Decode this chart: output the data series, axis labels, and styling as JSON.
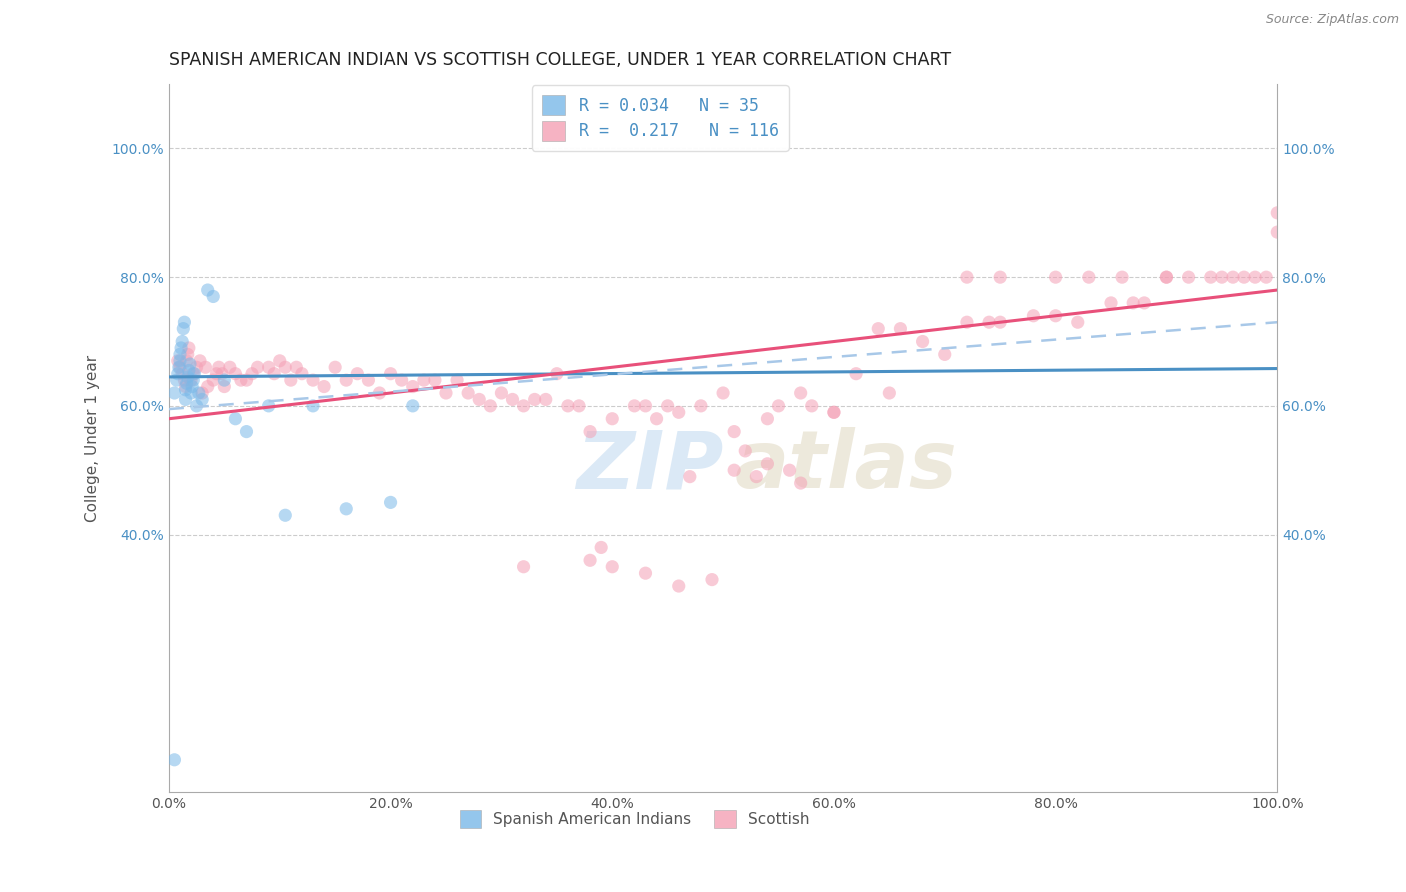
{
  "title": "SPANISH AMERICAN INDIAN VS SCOTTISH COLLEGE, UNDER 1 YEAR CORRELATION CHART",
  "source": "Source: ZipAtlas.com",
  "ylabel": "College, Under 1 year",
  "xlim": [
    0.0,
    1.0
  ],
  "ylim": [
    0.0,
    1.1
  ],
  "xtick_labels": [
    "0.0%",
    "20.0%",
    "40.0%",
    "60.0%",
    "80.0%",
    "100.0%"
  ],
  "xtick_values": [
    0.0,
    0.2,
    0.4,
    0.6,
    0.8,
    1.0
  ],
  "ytick_labels": [
    "40.0%",
    "60.0%",
    "80.0%",
    "100.0%"
  ],
  "ytick_values": [
    0.4,
    0.6,
    0.8,
    1.0
  ],
  "color_blue": "#7ab8e8",
  "color_pink": "#f4a0b5",
  "color_blue_line": "#4a90c4",
  "color_pink_line": "#e8507a",
  "color_dashed_line": "#a8c8e8",
  "scatter_alpha": 0.55,
  "scatter_size": 90,
  "blue_x": [
    0.005,
    0.007,
    0.008,
    0.009,
    0.01,
    0.01,
    0.011,
    0.012,
    0.013,
    0.014,
    0.015,
    0.015,
    0.016,
    0.017,
    0.018,
    0.019,
    0.02,
    0.021,
    0.022,
    0.023,
    0.025,
    0.027,
    0.03,
    0.035,
    0.04,
    0.05,
    0.06,
    0.07,
    0.09,
    0.105,
    0.13,
    0.16,
    0.2,
    0.22,
    0.005
  ],
  "blue_y": [
    0.62,
    0.64,
    0.65,
    0.66,
    0.67,
    0.68,
    0.69,
    0.7,
    0.72,
    0.73,
    0.61,
    0.625,
    0.635,
    0.645,
    0.655,
    0.665,
    0.62,
    0.63,
    0.64,
    0.65,
    0.6,
    0.62,
    0.61,
    0.78,
    0.77,
    0.64,
    0.58,
    0.56,
    0.6,
    0.43,
    0.6,
    0.44,
    0.45,
    0.6,
    0.05
  ],
  "pink_x": [
    0.008,
    0.01,
    0.012,
    0.014,
    0.015,
    0.016,
    0.017,
    0.018,
    0.02,
    0.022,
    0.025,
    0.028,
    0.03,
    0.033,
    0.035,
    0.04,
    0.043,
    0.045,
    0.048,
    0.05,
    0.055,
    0.06,
    0.065,
    0.07,
    0.075,
    0.08,
    0.09,
    0.095,
    0.1,
    0.105,
    0.11,
    0.115,
    0.12,
    0.13,
    0.14,
    0.15,
    0.16,
    0.17,
    0.18,
    0.19,
    0.2,
    0.21,
    0.22,
    0.23,
    0.24,
    0.25,
    0.26,
    0.27,
    0.28,
    0.29,
    0.3,
    0.31,
    0.32,
    0.33,
    0.34,
    0.35,
    0.36,
    0.37,
    0.38,
    0.39,
    0.4,
    0.42,
    0.43,
    0.44,
    0.45,
    0.46,
    0.47,
    0.48,
    0.5,
    0.51,
    0.52,
    0.53,
    0.54,
    0.55,
    0.56,
    0.57,
    0.58,
    0.6,
    0.62,
    0.64,
    0.65,
    0.66,
    0.68,
    0.7,
    0.72,
    0.74,
    0.75,
    0.78,
    0.8,
    0.82,
    0.85,
    0.87,
    0.88,
    0.9,
    0.92,
    0.94,
    0.95,
    0.96,
    0.97,
    0.98,
    0.99,
    1.0,
    1.0,
    0.32,
    0.38,
    0.4,
    0.43,
    0.46,
    0.49,
    0.51,
    0.54,
    0.57,
    0.6,
    0.72,
    0.75,
    0.8,
    0.83,
    0.86,
    0.9
  ],
  "pink_y": [
    0.67,
    0.66,
    0.65,
    0.64,
    0.63,
    0.67,
    0.68,
    0.69,
    0.64,
    0.65,
    0.66,
    0.67,
    0.62,
    0.66,
    0.63,
    0.64,
    0.65,
    0.66,
    0.65,
    0.63,
    0.66,
    0.65,
    0.64,
    0.64,
    0.65,
    0.66,
    0.66,
    0.65,
    0.67,
    0.66,
    0.64,
    0.66,
    0.65,
    0.64,
    0.63,
    0.66,
    0.64,
    0.65,
    0.64,
    0.62,
    0.65,
    0.64,
    0.63,
    0.64,
    0.64,
    0.62,
    0.64,
    0.62,
    0.61,
    0.6,
    0.62,
    0.61,
    0.6,
    0.61,
    0.61,
    0.65,
    0.6,
    0.6,
    0.56,
    0.38,
    0.58,
    0.6,
    0.6,
    0.58,
    0.6,
    0.59,
    0.49,
    0.6,
    0.62,
    0.56,
    0.53,
    0.49,
    0.58,
    0.6,
    0.5,
    0.62,
    0.6,
    0.59,
    0.65,
    0.72,
    0.62,
    0.72,
    0.7,
    0.68,
    0.73,
    0.73,
    0.73,
    0.74,
    0.74,
    0.73,
    0.76,
    0.76,
    0.76,
    0.8,
    0.8,
    0.8,
    0.8,
    0.8,
    0.8,
    0.8,
    0.8,
    0.9,
    0.87,
    0.35,
    0.36,
    0.35,
    0.34,
    0.32,
    0.33,
    0.5,
    0.51,
    0.48,
    0.59,
    0.8,
    0.8,
    0.8,
    0.8,
    0.8,
    0.8
  ],
  "blue_line_x0": 0.0,
  "blue_line_x1": 1.0,
  "blue_line_y0": 0.645,
  "blue_line_y1": 0.658,
  "pink_line_x0": 0.0,
  "pink_line_x1": 1.0,
  "pink_line_y0": 0.58,
  "pink_line_y1": 0.78,
  "dash_line_x0": 0.0,
  "dash_line_x1": 1.0,
  "dash_line_y0": 0.595,
  "dash_line_y1": 0.73
}
